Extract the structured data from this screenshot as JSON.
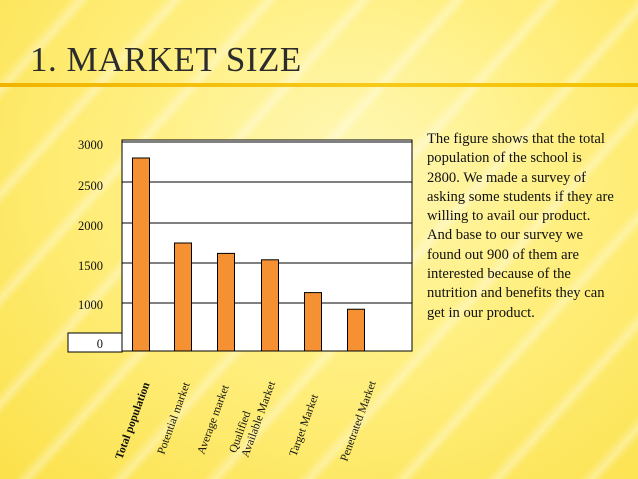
{
  "slide": {
    "title": "1. MARKET SIZE",
    "description": "The figure shows that the total population of the school is 2800. We made a survey of asking some students if they are willing to avail our product. And base to our survey we found out 900 of them are interested because of the nutrition and benefits they can get in our product."
  },
  "chart_data": {
    "type": "bar",
    "categories": [
      "Total population",
      "Potential market",
      "Average market",
      "Qualified Available Market",
      "Target Market",
      "Penetrated Market"
    ],
    "category_lines": [
      [
        "Total population"
      ],
      [
        "Potential market"
      ],
      [
        "Average market"
      ],
      [
        "Qualified",
        "Available Market"
      ],
      [
        "Target Market"
      ],
      [
        "Penetrated Market"
      ]
    ],
    "values": [
      2800,
      1750,
      1620,
      1540,
      1130,
      870
    ],
    "y_ticks": [
      {
        "label": "0",
        "value": 0
      },
      {
        "label": "1000",
        "value": 1000
      },
      {
        "label": "1500",
        "value": 1500
      },
      {
        "label": "2000",
        "value": 2000
      },
      {
        "label": "2500",
        "value": 2500
      },
      {
        "label": "3000",
        "value": 3000
      }
    ],
    "gridlines": true,
    "legend": "none",
    "colors": {
      "bar": "#f59033",
      "bar_border": "#000000",
      "plot_background": "#ffffff",
      "axis_label_background": "#ffffff"
    }
  }
}
